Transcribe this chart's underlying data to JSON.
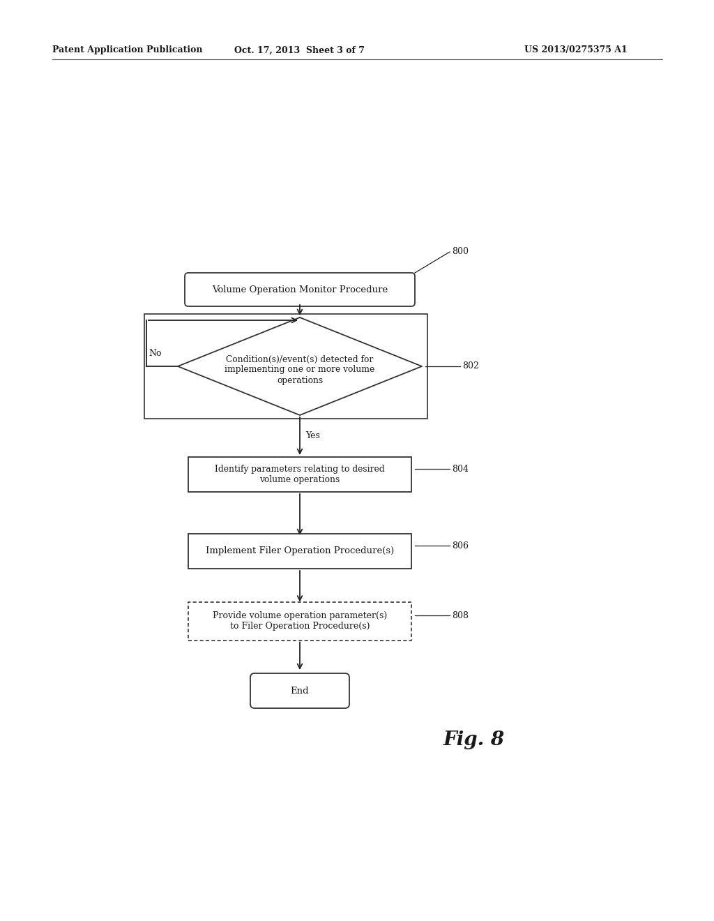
{
  "bg_color": "#f5f5f0",
  "bg_color_white": "#ffffff",
  "header_left": "Patent Application Publication",
  "header_mid": "Oct. 17, 2013  Sheet 3 of 7",
  "header_right": "US 2013/0275375 A1",
  "fig_label": "Fig. 8",
  "node_800_label": "Volume Operation Monitor Procedure",
  "node_800_ref": "800",
  "node_802_label": "Condition(s)/event(s) detected for\nimplementing one or more volume\noperations",
  "node_802_ref": "802",
  "node_804_label": "Identify parameters relating to desired\nvolume operations",
  "node_804_ref": "804",
  "node_806_label": "Implement Filer Operation Procedure(s)",
  "node_806_ref": "806",
  "node_808_label": "Provide volume operation parameter(s)\nto Filer Operation Procedure(s)",
  "node_808_ref": "808",
  "node_end_label": "End",
  "label_no": "No",
  "label_yes": "Yes",
  "text_color": "#1a1a1a",
  "box_edge_color": "#333333",
  "arrow_color": "#222222",
  "font_size_node": 9.5,
  "font_size_ref": 9,
  "font_size_header": 9,
  "font_size_fig": 18
}
